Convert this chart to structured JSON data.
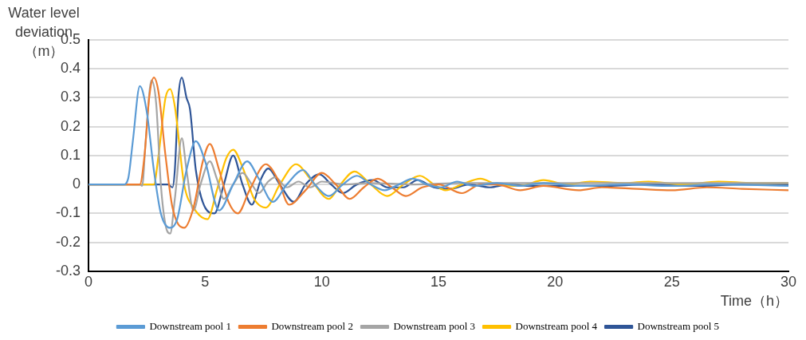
{
  "chart_data": {
    "type": "line",
    "ylabel": "Water level deviation（m）",
    "xlabel": "Time（h）",
    "xlim": [
      0,
      30
    ],
    "xticks": [
      0,
      5,
      10,
      15,
      20,
      25,
      30
    ],
    "ylim": [
      -0.3,
      0.5
    ],
    "yticks": [
      -0.3,
      -0.2,
      -0.1,
      0,
      0.1,
      0.2,
      0.3,
      0.4,
      0.5
    ],
    "grid": "y",
    "legend": "bottom",
    "marker": "none",
    "line_style": "solid",
    "series": [
      {
        "name": "Downstream pool 1",
        "color": "#5b9bd5",
        "x": [
          0,
          1.5,
          1.7,
          1.9,
          2.2,
          2.5,
          2.8,
          3.1,
          3.5,
          3.8,
          4.2,
          4.6,
          5.0,
          5.6,
          6.2,
          6.8,
          7.3,
          7.9,
          8.5,
          9.2,
          9.7,
          10.3,
          10.9,
          11.5,
          12.1,
          12.7,
          13.3,
          13.9,
          14.5,
          15.1,
          15.8,
          16.5,
          17.5,
          18.5,
          19.5,
          21,
          23,
          25,
          27,
          30
        ],
        "values": [
          0,
          0,
          0.02,
          0.15,
          0.34,
          0.25,
          0.05,
          -0.1,
          -0.15,
          -0.12,
          0.05,
          0.15,
          0.08,
          -0.09,
          0.0,
          0.08,
          0.02,
          -0.06,
          0.0,
          0.05,
          0.0,
          -0.04,
          0.0,
          0.03,
          0.0,
          -0.02,
          0.0,
          0.02,
          0.0,
          -0.01,
          0.01,
          -0.005,
          0.005,
          -0.005,
          0.005,
          -0.005,
          0.0,
          -0.005,
          0.0,
          -0.005
        ]
      },
      {
        "name": "Downstream pool 2",
        "color": "#ed7d31",
        "x": [
          0,
          2.2,
          2.4,
          2.6,
          2.8,
          3.0,
          3.3,
          3.6,
          4.1,
          4.5,
          4.9,
          5.2,
          5.6,
          6.0,
          6.4,
          6.9,
          7.6,
          8.1,
          8.6,
          9.3,
          10.0,
          10.6,
          11.2,
          11.8,
          12.4,
          13.0,
          13.6,
          14.3,
          15.0,
          16.0,
          16.8,
          17.5,
          18.5,
          19.5,
          21,
          22,
          23.5,
          25,
          26.5,
          28,
          30
        ],
        "values": [
          0,
          0,
          0.1,
          0.3,
          0.37,
          0.32,
          0.1,
          -0.08,
          -0.15,
          -0.08,
          0.08,
          0.14,
          0.05,
          -0.06,
          -0.1,
          -0.02,
          0.07,
          0.02,
          -0.07,
          -0.02,
          0.04,
          0.0,
          -0.05,
          -0.01,
          0.02,
          -0.01,
          -0.04,
          -0.01,
          0.0,
          -0.03,
          0.0,
          0.0,
          -0.02,
          -0.005,
          -0.02,
          -0.01,
          -0.015,
          -0.02,
          -0.01,
          -0.015,
          -0.02
        ]
      },
      {
        "name": "Downstream pool 3",
        "color": "#a5a5a5",
        "x": [
          0,
          2.2,
          2.3,
          2.45,
          2.7,
          2.9,
          3.1,
          3.3,
          3.5,
          3.7,
          4.0,
          4.2,
          4.5,
          4.8,
          5.2,
          5.5,
          5.8,
          6.2,
          6.6,
          7.0,
          7.3,
          7.7,
          8.0,
          8.5,
          9.0,
          9.5,
          10.0,
          11,
          12,
          14,
          16,
          18,
          20,
          24,
          27,
          30
        ],
        "values": [
          0,
          0,
          -0.005,
          0.15,
          0.36,
          0.28,
          0.0,
          -0.14,
          -0.17,
          -0.05,
          0.16,
          0.05,
          -0.09,
          0.0,
          0.08,
          0.02,
          -0.05,
          0.0,
          0.04,
          0.0,
          -0.03,
          0.01,
          0.025,
          -0.01,
          0.01,
          -0.01,
          0.01,
          0.0,
          0.005,
          0.0,
          0.005,
          0.005,
          0.005,
          0.005,
          0.005,
          0.005
        ]
      },
      {
        "name": "Downstream pool 4",
        "color": "#ffc000",
        "x": [
          0,
          2.8,
          3.0,
          3.3,
          3.5,
          3.7,
          4.1,
          4.5,
          5.1,
          5.5,
          5.9,
          6.2,
          6.6,
          7.1,
          7.6,
          8.2,
          8.9,
          9.5,
          10.3,
          10.8,
          11.4,
          12.1,
          12.8,
          13.5,
          14.2,
          14.8,
          15.3,
          16.0,
          16.8,
          17.5,
          18.5,
          19.5,
          20.5,
          21.5,
          23,
          24,
          25.5,
          27,
          28.5,
          30
        ],
        "values": [
          0,
          0,
          0.1,
          0.3,
          0.33,
          0.27,
          0.0,
          -0.08,
          -0.12,
          -0.02,
          0.09,
          0.12,
          0.06,
          -0.05,
          -0.08,
          0.0,
          0.07,
          0.02,
          -0.05,
          0.0,
          0.045,
          0.0,
          -0.04,
          0.0,
          0.03,
          0.0,
          -0.02,
          0.0,
          0.02,
          0.0,
          -0.005,
          0.015,
          0.0,
          0.01,
          0.005,
          0.01,
          0.0,
          0.01,
          0.005,
          0.005
        ]
      },
      {
        "name": "Downstream pool 5",
        "color": "#2f5597",
        "x": [
          0,
          3.4,
          3.6,
          3.7,
          3.85,
          4.0,
          4.2,
          4.35,
          4.6,
          5.0,
          5.4,
          5.8,
          6.2,
          6.6,
          7.0,
          7.4,
          7.7,
          8.2,
          8.8,
          9.3,
          9.9,
          10.4,
          10.9,
          11.5,
          12.2,
          12.8,
          13.5,
          14.1,
          14.8,
          15.5,
          16.3,
          17.2,
          18,
          19,
          20,
          22,
          24,
          26,
          28,
          30
        ],
        "values": [
          0,
          0,
          -0.01,
          0.05,
          0.3,
          0.37,
          0.3,
          0.26,
          0.05,
          -0.08,
          -0.1,
          0.0,
          0.1,
          0.0,
          -0.07,
          0.02,
          0.055,
          0.0,
          -0.06,
          0.0,
          0.035,
          0.0,
          -0.03,
          0.0,
          0.015,
          -0.01,
          -0.01,
          0.015,
          -0.01,
          -0.015,
          0.0,
          -0.01,
          0.0,
          -0.005,
          -0.005,
          -0.005,
          0.0,
          -0.005,
          0.0,
          0.0
        ]
      }
    ]
  }
}
